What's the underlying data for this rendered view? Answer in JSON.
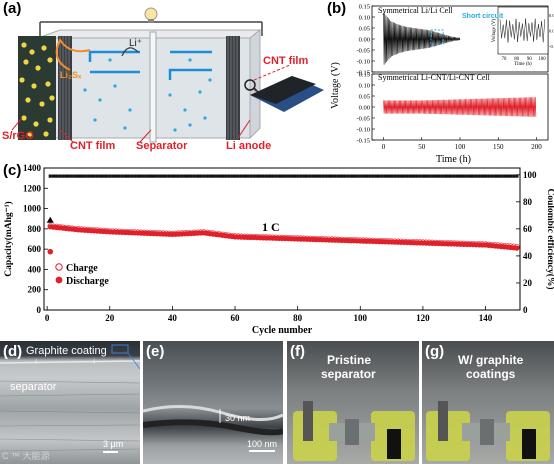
{
  "panel_a": {
    "label": "(a)",
    "li_ion": "Li⁺",
    "species_label": "Li₂Sₓ",
    "srgo": "S/rGO",
    "cnt_film_left": "CNT film",
    "separator": "Separator",
    "cnt_film_right": "CNT film",
    "li_anode": "Li anode"
  },
  "panel_b": {
    "label": "(b)",
    "top_title": "Symmetrical Li/Li Cell",
    "short_circuit": "Short circuit",
    "bottom_title": "Symmetrical Li-CNT/Li-CNT Cell",
    "ylabel": "Voltage (V)",
    "xlabel": "Time (h)",
    "inset_ylabel": "Voltage (V)",
    "inset_xlabel": "Time (h)",
    "yticks_top": [
      "0.15",
      "0.10",
      "0.05",
      "0.00",
      "-0.05",
      "-0.10",
      "-0.15"
    ],
    "yticks_bottom": [
      "0.15",
      "0.10",
      "0.05",
      "0.00",
      "-0.05",
      "-0.10",
      "-0.15"
    ],
    "xticks": [
      "0",
      "50",
      "100",
      "150",
      "200"
    ],
    "inset_xticks": [
      "70",
      "80",
      "90",
      "100"
    ],
    "inset_yticks": [
      "0.05",
      "0.00",
      "-0.05"
    ]
  },
  "panel_c": {
    "label": "(c)",
    "legend_charge": "Charge",
    "legend_discharge": "Discharge",
    "rate": "1 C"
  },
  "panel_d": {
    "label": "(d)",
    "coating": "Graphite coating",
    "separator": "separator",
    "scale": "3 μm",
    "watermark": "C ™ 大能源"
  },
  "panel_e": {
    "label": "(e)",
    "thickness": "30 nm",
    "scale": "100 nm"
  },
  "panel_f": {
    "label": "(f)",
    "title_line1": "Pristine",
    "title_line2": "separator"
  },
  "panel_g": {
    "label": "(g)",
    "title_line1": "W/ graphite",
    "title_line2": "coatings"
  },
  "colors": {
    "red": "#e0202a",
    "cyan": "#29a9e0",
    "blue": "#1a8fd6"
  },
  "chart_data": [
    {
      "type": "line",
      "title": "Symmetrical Li/Li Cell",
      "xlabel": "Time (h)",
      "ylabel": "Voltage (V)",
      "xlim": [
        -15,
        215
      ],
      "ylim": [
        -0.15,
        0.15
      ],
      "series": [
        {
          "name": "Symmetrical Li/Li Cell",
          "x": [
            0,
            5,
            10,
            20,
            30,
            40,
            50,
            60,
            65,
            70,
            75,
            80,
            90,
            100
          ],
          "amplitude": [
            0.12,
            0.1,
            0.08,
            0.065,
            0.055,
            0.05,
            0.045,
            0.04,
            0.035,
            0.03,
            0.025,
            0.02,
            0.01,
            0.005
          ]
        }
      ],
      "annotations": [
        "Short circuit"
      ]
    },
    {
      "type": "line",
      "title": "Symmetrical Li-CNT/Li-CNT Cell",
      "xlabel": "Time (h)",
      "ylabel": "Voltage (V)",
      "xlim": [
        -15,
        215
      ],
      "ylim": [
        -0.15,
        0.15
      ],
      "series": [
        {
          "name": "Symmetrical Li-CNT/Li-CNT Cell",
          "x": [
            0,
            50,
            100,
            150,
            200
          ],
          "amplitude": [
            0.03,
            0.03,
            0.035,
            0.04,
            0.045
          ]
        }
      ]
    },
    {
      "type": "scatter",
      "xlabel": "Cycle number",
      "ylabel": "Capacity(mAhg⁻¹)",
      "y2label": "Coulombic efficiency(%)",
      "xlim": [
        -1,
        151
      ],
      "ylim": [
        0,
        1400
      ],
      "y2lim": [
        0,
        105
      ],
      "xticks": [
        0,
        20,
        40,
        60,
        80,
        100,
        120,
        140
      ],
      "yticks": [
        0,
        200,
        400,
        600,
        800,
        1000,
        1200,
        1400
      ],
      "y2ticks": [
        0,
        20,
        40,
        60,
        80,
        100
      ],
      "series": [
        {
          "name": "Charge",
          "x": [
            1,
            10,
            20,
            40,
            50,
            60,
            80,
            100,
            120,
            140,
            150
          ],
          "y": [
            820,
            790,
            770,
            745,
            760,
            720,
            700,
            680,
            660,
            640,
            615
          ]
        },
        {
          "name": "Discharge",
          "x": [
            1,
            10,
            20,
            40,
            50,
            60,
            80,
            100,
            120,
            140,
            150
          ],
          "y": [
            820,
            790,
            770,
            745,
            760,
            720,
            700,
            680,
            660,
            640,
            610
          ]
        },
        {
          "name": "Coulombic efficiency",
          "axis": "right",
          "x": [
            1,
            20,
            40,
            60,
            80,
            100,
            120,
            150
          ],
          "y": [
            99,
            99,
            99,
            99,
            99,
            99,
            99,
            99
          ]
        }
      ],
      "first_cycle": {
        "charge": 880,
        "discharge": 575
      },
      "annotations": [
        "1 C"
      ]
    }
  ]
}
